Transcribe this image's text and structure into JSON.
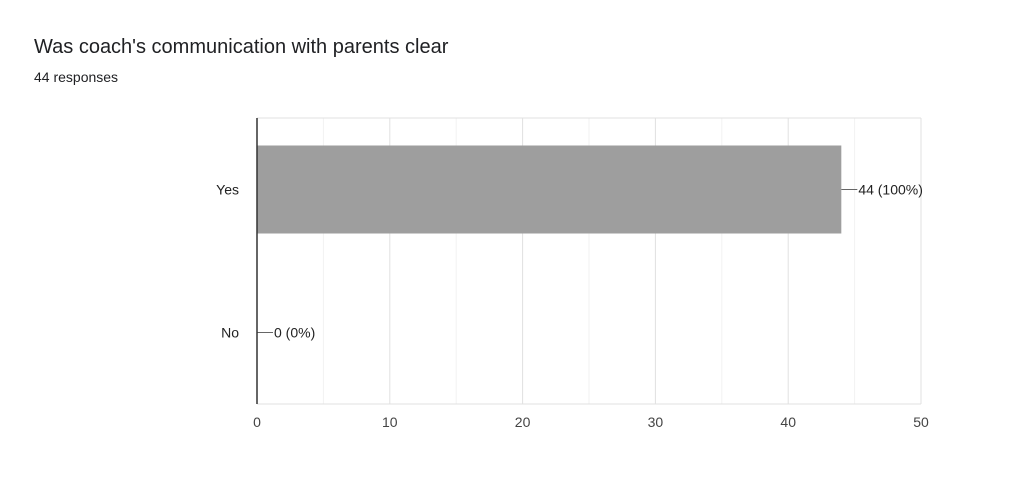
{
  "question": {
    "title": "Was coach's communication with parents clear",
    "responses": "44 responses"
  },
  "chart_data": {
    "type": "bar",
    "orientation": "horizontal",
    "title": "Was coach's communication with parents clear",
    "subtitle": "44 responses",
    "categories": [
      "Yes",
      "No"
    ],
    "values": [
      44,
      0
    ],
    "value_labels": [
      "44 (100%)",
      "0 (0%)"
    ],
    "xlim": [
      0,
      50
    ],
    "xticks": [
      0,
      10,
      20,
      30,
      40,
      50
    ],
    "xlabel": "",
    "ylabel": "",
    "grid": true,
    "bar_color": "#9e9e9e"
  }
}
